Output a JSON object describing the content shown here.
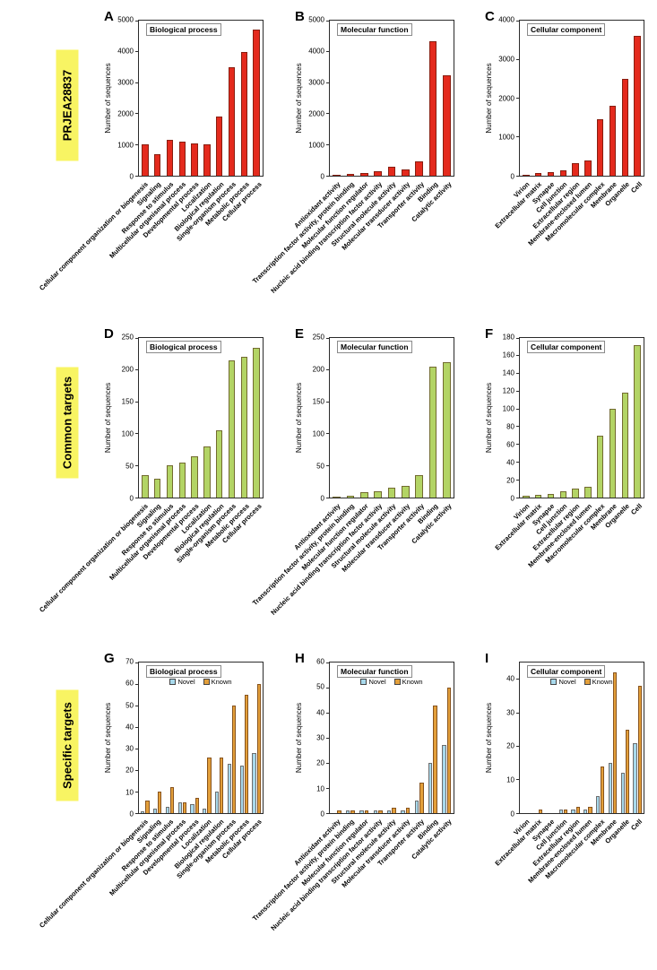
{
  "figure": {
    "row_labels": [
      {
        "text": "PRJEA28837"
      },
      {
        "text": "Common targets"
      },
      {
        "text": "Specific targets"
      }
    ]
  },
  "colors": {
    "prjea_bar": "#e42a1d",
    "common_bar": "#b3d465",
    "novel_bar": "#a8d9ec",
    "known_bar": "#e39f3a",
    "row_label_bg": "#f8f463"
  },
  "chart_data": [
    {
      "panel": "A",
      "type": "bar",
      "title": "Biological process",
      "ylabel": "Number of sequences",
      "ylim": [
        0,
        5000
      ],
      "yticks": [
        0,
        1000,
        2000,
        3000,
        4000,
        5000
      ],
      "bar_color": "#e42a1d",
      "categories": [
        "Cellular component organization or biogenesis",
        "Signaling",
        "Response to stimulus",
        "Multicellular organismal process",
        "Developmental process",
        "Localization",
        "Biological regulation",
        "Single-organism process",
        "Metabolic process",
        "Cellular process"
      ],
      "values": [
        1000,
        700,
        1150,
        1100,
        1050,
        1000,
        1900,
        3500,
        4000,
        4700
      ]
    },
    {
      "panel": "B",
      "type": "bar",
      "title": "Molecular function",
      "ylabel": "Number of sequences",
      "ylim": [
        0,
        5000
      ],
      "yticks": [
        0,
        1000,
        2000,
        3000,
        4000,
        5000
      ],
      "bar_color": "#e42a1d",
      "categories": [
        "Antioxidant activity",
        "Transcription factor activity, protein binding",
        "Molecular function regulator",
        "Nucleic acid binding transcription factor activity",
        "Structural molecule activity",
        "Molecular transducer activity",
        "Transporter activity",
        "Binding",
        "Catalytic activity"
      ],
      "values": [
        30,
        70,
        100,
        150,
        300,
        200,
        450,
        4350,
        3250
      ]
    },
    {
      "panel": "C",
      "type": "bar",
      "title": "Cellular component",
      "ylabel": "Number of sequences",
      "ylim": [
        0,
        4000
      ],
      "yticks": [
        0,
        1000,
        2000,
        3000,
        4000
      ],
      "bar_color": "#e42a1d",
      "categories": [
        "Virion",
        "Extracellular matrix",
        "Synapse",
        "Cell junction",
        "Extracellular region",
        "Membrane-enclosed lumen",
        "Macromolecular complex",
        "Membrane",
        "Organelle",
        "Cell"
      ],
      "values": [
        25,
        60,
        90,
        130,
        330,
        400,
        1450,
        1800,
        2500,
        3600
      ]
    },
    {
      "panel": "D",
      "type": "bar",
      "title": "Biological process",
      "ylabel": "Number of sequences",
      "ylim": [
        0,
        250
      ],
      "yticks": [
        0,
        50,
        100,
        150,
        200,
        250
      ],
      "bar_color": "#b3d465",
      "categories": [
        "Cellular component organization or biogenesis",
        "Signaling",
        "Response to stimulus",
        "Multicellular organismal process",
        "Developmental process",
        "Localization",
        "Biological regulation",
        "Single-organism process",
        "Metabolic process",
        "Cellular process"
      ],
      "values": [
        35,
        30,
        50,
        55,
        65,
        80,
        105,
        215,
        220,
        235
      ]
    },
    {
      "panel": "E",
      "type": "bar",
      "title": "Molecular function",
      "ylabel": "Number of sequences",
      "ylim": [
        0,
        250
      ],
      "yticks": [
        0,
        50,
        100,
        150,
        200,
        250
      ],
      "bar_color": "#b3d465",
      "categories": [
        "Antioxidant activity",
        "Transcription factor activity, protein binding",
        "Molecular function regulator",
        "Nucleic acid binding transcription factor activity",
        "Structural molecule activity",
        "Molecular transducer activity",
        "Transporter activity",
        "Binding",
        "Catalytic activity"
      ],
      "values": [
        2,
        3,
        8,
        10,
        15,
        18,
        35,
        205,
        212
      ]
    },
    {
      "panel": "F",
      "type": "bar",
      "title": "Cellular component",
      "ylabel": "Number of sequences",
      "ylim": [
        0,
        180
      ],
      "yticks": [
        0,
        20,
        40,
        60,
        80,
        100,
        120,
        140,
        160,
        180
      ],
      "bar_color": "#b3d465",
      "categories": [
        "Virion",
        "Extracellular matrix",
        "Synapse",
        "Cell junction",
        "Extracellular region",
        "Membrane-enclosed lumen",
        "Macromolecular complex",
        "Membrane",
        "Organelle",
        "Cell"
      ],
      "values": [
        2,
        3,
        4,
        7,
        10,
        12,
        70,
        100,
        118,
        172
      ]
    },
    {
      "panel": "G",
      "type": "bar",
      "title": "Biological process",
      "ylabel": "Number of sequences",
      "ylim": [
        0,
        70
      ],
      "yticks": [
        0,
        10,
        20,
        30,
        40,
        50,
        60,
        70
      ],
      "categories": [
        "Cellular component organization or biogenesis",
        "Signaling",
        "Response to stimulus",
        "Multicellular organismal process",
        "Developmental process",
        "Localization",
        "Biological regulation",
        "Single-organism process",
        "Metabolic process",
        "Cellular process"
      ],
      "series": [
        {
          "name": "Novel",
          "color": "#a8d9ec",
          "values": [
            1,
            2,
            3,
            5,
            4,
            2,
            10,
            23,
            22,
            28
          ]
        },
        {
          "name": "Known",
          "color": "#e39f3a",
          "values": [
            6,
            10,
            12,
            5,
            7,
            26,
            26,
            50,
            55,
            60
          ]
        }
      ]
    },
    {
      "panel": "H",
      "type": "bar",
      "title": "Molecular function",
      "ylabel": "Number of sequences",
      "ylim": [
        0,
        60
      ],
      "yticks": [
        0,
        10,
        20,
        30,
        40,
        50,
        60
      ],
      "categories": [
        "Antioxidant activity",
        "Transcription factor activity, protein binding",
        "Molecular function regulator",
        "Nucleic acid binding transcription factor activity",
        "Structural molecule activity",
        "Molecular transducer activity",
        "Transporter activity",
        "Binding",
        "Catalytic activity"
      ],
      "series": [
        {
          "name": "Novel",
          "color": "#a8d9ec",
          "values": [
            0,
            1,
            1,
            1,
            1,
            1,
            5,
            20,
            27
          ]
        },
        {
          "name": "Known",
          "color": "#e39f3a",
          "values": [
            1,
            1,
            1,
            1,
            2,
            2,
            12,
            43,
            50
          ]
        }
      ]
    },
    {
      "panel": "I",
      "type": "bar",
      "title": "Cellular component",
      "ylabel": "Number of sequences",
      "ylim": [
        0,
        45
      ],
      "yticks": [
        0,
        10,
        20,
        30,
        40
      ],
      "categories": [
        "Virion",
        "Extracellular matrix",
        "Synapse",
        "Cell junction",
        "Extracellular region",
        "Membrane-enclosed lumen",
        "Macromolecular complex",
        "Membrane",
        "Organelle",
        "Cell"
      ],
      "series": [
        {
          "name": "Novel",
          "color": "#a8d9ec",
          "values": [
            0,
            0,
            0,
            1,
            1,
            1,
            5,
            15,
            12,
            21
          ]
        },
        {
          "name": "Known",
          "color": "#e39f3a",
          "values": [
            0,
            1,
            0,
            1,
            2,
            2,
            14,
            42,
            25,
            38
          ]
        }
      ]
    }
  ]
}
